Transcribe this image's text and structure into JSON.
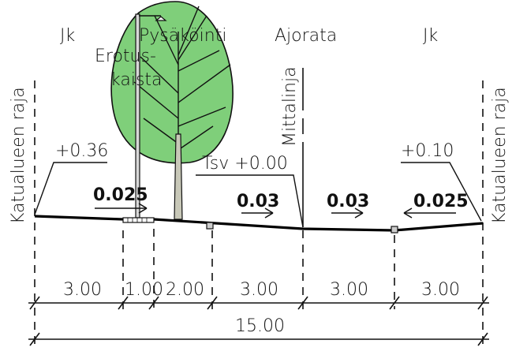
{
  "sections": {
    "jk_left": "Jk",
    "pysakointi": "Pysäköinti",
    "ajorata": "Ajorata",
    "jk_right": "Jk"
  },
  "labels": {
    "erotus_line1": "Erotus-",
    "erotus_line2": "kaista",
    "mittalinja": "Mittalinja",
    "katualueen_raja_left": "Katualueen raja",
    "katualueen_raja_right": "Katualueen raja",
    "tsv": "Tsv +0.00"
  },
  "elevations": {
    "left": "+0.36",
    "right": "+0.10"
  },
  "slopes": {
    "s1": "0.025",
    "s2": "0.03",
    "s3": "0.03",
    "s4": "0.025"
  },
  "dimensions": {
    "d1": "3.00",
    "d2": "1.00",
    "d3": "2.00",
    "d4": "3.00",
    "d5": "3.00",
    "d6": "3.00",
    "total": "15.00"
  },
  "colors": {
    "tree_fill": "#7fcf7a",
    "line": "#000000"
  }
}
